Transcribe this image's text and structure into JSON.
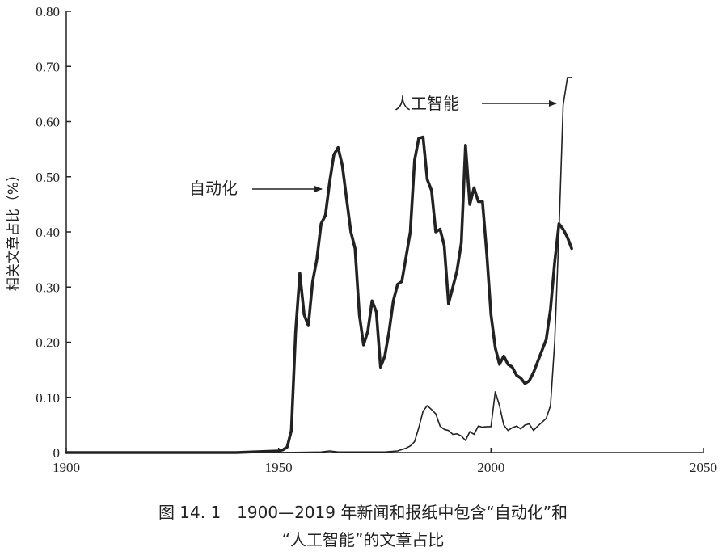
{
  "chart_data": {
    "type": "line",
    "ylabel": "相关文章占比（%）",
    "xlim": [
      1900,
      2050
    ],
    "ylim": [
      0,
      0.8
    ],
    "x_ticks": [
      "1900",
      "1950",
      "2000",
      "2050"
    ],
    "y_ticks": [
      "0",
      "0.10",
      "0.20",
      "0.30",
      "0.40",
      "0.50",
      "0.60",
      "0.70",
      "0.80"
    ],
    "grid": false,
    "legend": "none",
    "annotations": [
      {
        "text": "自动化",
        "series": "自动化"
      },
      {
        "text": "人工智能",
        "series": "人工智能"
      }
    ],
    "series": [
      {
        "name": "自动化",
        "style": "thick",
        "x": [
          1900,
          1910,
          1920,
          1930,
          1940,
          1950,
          1951,
          1952,
          1953,
          1954,
          1955,
          1956,
          1957,
          1958,
          1959,
          1960,
          1961,
          1962,
          1963,
          1964,
          1965,
          1966,
          1967,
          1968,
          1969,
          1970,
          1971,
          1972,
          1973,
          1974,
          1975,
          1976,
          1977,
          1978,
          1979,
          1980,
          1981,
          1982,
          1983,
          1984,
          1985,
          1986,
          1987,
          1988,
          1989,
          1990,
          1991,
          1992,
          1993,
          1994,
          1995,
          1996,
          1997,
          1998,
          1999,
          2000,
          2001,
          2002,
          2003,
          2004,
          2005,
          2006,
          2007,
          2008,
          2009,
          2010,
          2011,
          2012,
          2013,
          2014,
          2015,
          2016,
          2017,
          2018,
          2019
        ],
        "values": [
          0,
          0,
          0,
          0,
          0,
          0.003,
          0.005,
          0.01,
          0.04,
          0.22,
          0.325,
          0.25,
          0.23,
          0.31,
          0.35,
          0.415,
          0.43,
          0.49,
          0.54,
          0.553,
          0.52,
          0.46,
          0.4,
          0.37,
          0.25,
          0.195,
          0.22,
          0.275,
          0.255,
          0.155,
          0.175,
          0.22,
          0.275,
          0.305,
          0.31,
          0.355,
          0.4,
          0.53,
          0.57,
          0.572,
          0.495,
          0.475,
          0.4,
          0.405,
          0.375,
          0.27,
          0.3,
          0.33,
          0.38,
          0.557,
          0.45,
          0.48,
          0.455,
          0.455,
          0.36,
          0.25,
          0.19,
          0.16,
          0.175,
          0.16,
          0.155,
          0.14,
          0.135,
          0.125,
          0.13,
          0.145,
          0.165,
          0.185,
          0.205,
          0.26,
          0.345,
          0.415,
          0.405,
          0.39,
          0.37
        ]
      },
      {
        "name": "人工智能",
        "style": "thin",
        "x": [
          1900,
          1950,
          1960,
          1962,
          1964,
          1970,
          1975,
          1978,
          1980,
          1981,
          1982,
          1983,
          1984,
          1985,
          1986,
          1987,
          1988,
          1989,
          1990,
          1991,
          1992,
          1993,
          1994,
          1995,
          1996,
          1997,
          1998,
          1999,
          2000,
          2001,
          2002,
          2003,
          2004,
          2005,
          2006,
          2007,
          2008,
          2009,
          2010,
          2011,
          2012,
          2013,
          2014,
          2015,
          2016,
          2017,
          2018,
          2019
        ],
        "values": [
          0,
          0,
          0.001,
          0.003,
          0.001,
          0.001,
          0.001,
          0.003,
          0.008,
          0.012,
          0.02,
          0.045,
          0.075,
          0.085,
          0.078,
          0.07,
          0.048,
          0.042,
          0.04,
          0.033,
          0.034,
          0.03,
          0.022,
          0.038,
          0.033,
          0.048,
          0.046,
          0.047,
          0.047,
          0.11,
          0.085,
          0.05,
          0.04,
          0.045,
          0.048,
          0.043,
          0.05,
          0.052,
          0.04,
          0.048,
          0.055,
          0.062,
          0.085,
          0.2,
          0.4,
          0.63,
          0.68,
          0.68
        ]
      }
    ]
  },
  "caption": {
    "line1": "图 14. 1　1900—2019 年新闻和报纸中包含“自动化”和",
    "line2": "“人工智能”的文章占比"
  }
}
